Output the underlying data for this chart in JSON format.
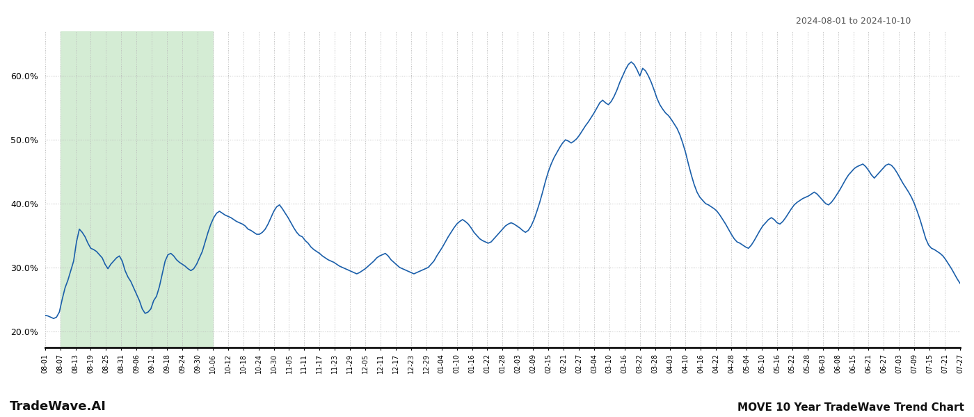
{
  "title_right": "2024-08-01 to 2024-10-10",
  "footer_left": "TradeWave.AI",
  "footer_right": "MOVE 10 Year TradeWave Trend Chart",
  "ylim": [
    0.175,
    0.67
  ],
  "yticks": [
    0.2,
    0.3,
    0.4,
    0.5,
    0.6
  ],
  "line_color": "#1b5faa",
  "grid_color": "#bbbbbb",
  "grid_linestyle": ":",
  "shade_color": "#d4ecd4",
  "line_width": 1.2,
  "shade_start_date": "08-07",
  "shade_end_date": "10-06",
  "x_labels": [
    "08-01",
    "08-07",
    "08-13",
    "08-19",
    "08-25",
    "08-31",
    "09-06",
    "09-12",
    "09-18",
    "09-24",
    "09-30",
    "10-06",
    "10-12",
    "10-18",
    "10-24",
    "10-30",
    "11-05",
    "11-11",
    "11-17",
    "11-23",
    "11-29",
    "12-05",
    "12-11",
    "12-17",
    "12-23",
    "12-29",
    "01-04",
    "01-10",
    "01-16",
    "01-22",
    "01-28",
    "02-03",
    "02-09",
    "02-15",
    "02-21",
    "02-27",
    "03-04",
    "03-10",
    "03-16",
    "03-22",
    "03-28",
    "04-03",
    "04-10",
    "04-16",
    "04-22",
    "04-28",
    "05-04",
    "05-10",
    "05-16",
    "05-22",
    "05-28",
    "06-03",
    "06-08",
    "06-15",
    "06-21",
    "06-27",
    "07-03",
    "07-09",
    "07-15",
    "07-21",
    "07-27"
  ],
  "values": [
    0.225,
    0.224,
    0.222,
    0.22,
    0.222,
    0.23,
    0.25,
    0.268,
    0.28,
    0.295,
    0.31,
    0.34,
    0.36,
    0.355,
    0.348,
    0.338,
    0.33,
    0.328,
    0.325,
    0.32,
    0.315,
    0.305,
    0.298,
    0.305,
    0.31,
    0.315,
    0.318,
    0.31,
    0.295,
    0.285,
    0.278,
    0.268,
    0.258,
    0.248,
    0.235,
    0.228,
    0.23,
    0.235,
    0.248,
    0.255,
    0.27,
    0.29,
    0.31,
    0.32,
    0.322,
    0.318,
    0.312,
    0.308,
    0.305,
    0.302,
    0.298,
    0.295,
    0.298,
    0.305,
    0.315,
    0.325,
    0.34,
    0.355,
    0.368,
    0.378,
    0.385,
    0.388,
    0.385,
    0.382,
    0.38,
    0.378,
    0.375,
    0.372,
    0.37,
    0.368,
    0.365,
    0.36,
    0.358,
    0.355,
    0.352,
    0.352,
    0.355,
    0.36,
    0.368,
    0.378,
    0.388,
    0.395,
    0.398,
    0.392,
    0.385,
    0.378,
    0.37,
    0.362,
    0.355,
    0.35,
    0.348,
    0.342,
    0.338,
    0.332,
    0.328,
    0.325,
    0.322,
    0.318,
    0.315,
    0.312,
    0.31,
    0.308,
    0.305,
    0.302,
    0.3,
    0.298,
    0.296,
    0.294,
    0.292,
    0.29,
    0.292,
    0.295,
    0.298,
    0.302,
    0.306,
    0.31,
    0.315,
    0.318,
    0.32,
    0.322,
    0.318,
    0.312,
    0.308,
    0.304,
    0.3,
    0.298,
    0.296,
    0.294,
    0.292,
    0.29,
    0.292,
    0.294,
    0.296,
    0.298,
    0.3,
    0.305,
    0.31,
    0.318,
    0.325,
    0.332,
    0.34,
    0.348,
    0.355,
    0.362,
    0.368,
    0.372,
    0.375,
    0.372,
    0.368,
    0.362,
    0.355,
    0.35,
    0.345,
    0.342,
    0.34,
    0.338,
    0.34,
    0.345,
    0.35,
    0.355,
    0.36,
    0.365,
    0.368,
    0.37,
    0.368,
    0.365,
    0.362,
    0.358,
    0.355,
    0.358,
    0.365,
    0.375,
    0.388,
    0.402,
    0.418,
    0.435,
    0.45,
    0.462,
    0.472,
    0.48,
    0.488,
    0.495,
    0.5,
    0.498,
    0.495,
    0.498,
    0.502,
    0.508,
    0.515,
    0.522,
    0.528,
    0.535,
    0.542,
    0.55,
    0.558,
    0.562,
    0.558,
    0.555,
    0.56,
    0.568,
    0.578,
    0.59,
    0.6,
    0.61,
    0.618,
    0.622,
    0.618,
    0.61,
    0.6,
    0.612,
    0.608,
    0.6,
    0.59,
    0.578,
    0.565,
    0.555,
    0.548,
    0.542,
    0.538,
    0.532,
    0.525,
    0.518,
    0.508,
    0.495,
    0.48,
    0.462,
    0.445,
    0.43,
    0.418,
    0.41,
    0.405,
    0.4,
    0.398,
    0.395,
    0.392,
    0.388,
    0.382,
    0.375,
    0.368,
    0.36,
    0.352,
    0.345,
    0.34,
    0.338,
    0.335,
    0.332,
    0.33,
    0.335,
    0.342,
    0.35,
    0.358,
    0.365,
    0.37,
    0.375,
    0.378,
    0.375,
    0.37,
    0.368,
    0.372,
    0.378,
    0.385,
    0.392,
    0.398,
    0.402,
    0.405,
    0.408,
    0.41,
    0.412,
    0.415,
    0.418,
    0.415,
    0.41,
    0.405,
    0.4,
    0.398,
    0.402,
    0.408,
    0.415,
    0.422,
    0.43,
    0.438,
    0.445,
    0.45,
    0.455,
    0.458,
    0.46,
    0.462,
    0.458,
    0.452,
    0.445,
    0.44,
    0.445,
    0.45,
    0.455,
    0.46,
    0.462,
    0.46,
    0.455,
    0.448,
    0.44,
    0.432,
    0.425,
    0.418,
    0.41,
    0.4,
    0.388,
    0.375,
    0.36,
    0.345,
    0.335,
    0.33,
    0.328,
    0.325,
    0.322,
    0.318,
    0.312,
    0.305,
    0.298,
    0.29,
    0.282,
    0.275
  ]
}
